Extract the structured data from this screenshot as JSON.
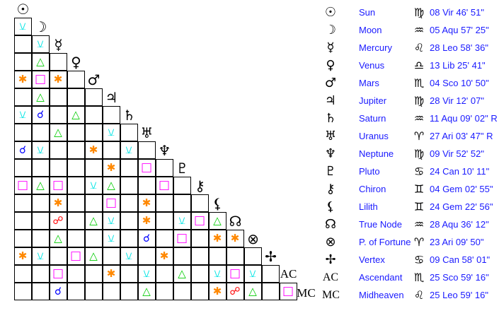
{
  "planets": [
    {
      "glyph": "☉",
      "name": "Sun",
      "sign": "♍",
      "position": "08 Vir 46' 51\""
    },
    {
      "glyph": "☽",
      "name": "Moon",
      "sign": "♒",
      "position": "05 Aqu 57' 25\""
    },
    {
      "glyph": "☿",
      "name": "Mercury",
      "sign": "♌",
      "position": "28 Leo 58' 36\""
    },
    {
      "glyph": "♀",
      "name": "Venus",
      "sign": "♎",
      "position": "13 Lib 25' 41\""
    },
    {
      "glyph": "♂",
      "name": "Mars",
      "sign": "♏",
      "position": "04 Sco 10' 50\""
    },
    {
      "glyph": "♃",
      "name": "Jupiter",
      "sign": "♍",
      "position": "28 Vir 12' 07\""
    },
    {
      "glyph": "♄",
      "name": "Saturn",
      "sign": "♒",
      "position": "11 Aqu 09' 02\" R"
    },
    {
      "glyph": "♅",
      "name": "Uranus",
      "sign": "♈",
      "position": "27 Ari 03' 47\" R"
    },
    {
      "glyph": "♆",
      "name": "Neptune",
      "sign": "♍",
      "position": "09 Vir 52' 52\""
    },
    {
      "glyph": "♇",
      "name": "Pluto",
      "sign": "♋",
      "position": "24 Can 10' 11\""
    },
    {
      "glyph": "⚷",
      "name": "Chiron",
      "sign": "♊",
      "position": "04 Gem 02' 55\""
    },
    {
      "glyph": "⚸",
      "name": "Lilith",
      "sign": "♊",
      "position": "24 Gem 22' 56\""
    },
    {
      "glyph": "☊",
      "name": "True Node",
      "sign": "♒",
      "position": "28 Aqu 36' 12\""
    },
    {
      "glyph": "⊗",
      "name": "P. of Fortune",
      "sign": "♈",
      "position": "23 Ari 09' 50\""
    },
    {
      "glyph": "✢",
      "name": "Vertex",
      "sign": "♋",
      "position": "09 Can 58' 01\""
    },
    {
      "glyph": "AC",
      "name": "Ascendant",
      "sign": "♏",
      "position": "25 Sco 59' 16\""
    },
    {
      "glyph": "MC",
      "name": "Midheaven",
      "sign": "♌",
      "position": "25 Leo 59' 16\""
    }
  ],
  "aspect_types": {
    "C": {
      "name": "conjunction",
      "glyph": "☌",
      "color": "#0000ff"
    },
    "O": {
      "name": "opposition",
      "glyph": "☍",
      "color": "#ff0000"
    },
    "T": {
      "name": "trine",
      "glyph": "△",
      "color": "#00cc00"
    },
    "S": {
      "name": "square",
      "glyph": "□",
      "color": "#ff00ff"
    },
    "X": {
      "name": "sextile",
      "glyph": "✱",
      "color": "#ff8800"
    },
    "H": {
      "name": "semisextile",
      "glyph": "⚺",
      "color": "#00e5e5"
    }
  },
  "aspect_grid": [
    [
      "H"
    ],
    [
      "",
      "H"
    ],
    [
      "",
      "T",
      ""
    ],
    [
      "X",
      "S",
      "X",
      ""
    ],
    [
      "",
      "T",
      "",
      "",
      ""
    ],
    [
      "H",
      "C",
      "",
      "T",
      "",
      ""
    ],
    [
      "",
      "",
      "T",
      "",
      "",
      "H",
      ""
    ],
    [
      "C",
      "H",
      "",
      "",
      "X",
      "",
      "H",
      ""
    ],
    [
      "",
      "",
      "",
      "",
      "",
      "X",
      "",
      "S",
      ""
    ],
    [
      "S",
      "T",
      "S",
      "",
      "H",
      "T",
      "",
      "",
      "S",
      ""
    ],
    [
      "",
      "",
      "X",
      "",
      "",
      "S",
      "",
      "X",
      "",
      "",
      ""
    ],
    [
      "",
      "",
      "O",
      "",
      "T",
      "H",
      "",
      "X",
      "",
      "H",
      "S",
      "T"
    ],
    [
      "",
      "",
      "T",
      "",
      "",
      "H",
      "",
      "C",
      "",
      "S",
      "",
      "X",
      "X"
    ],
    [
      "X",
      "H",
      "",
      "S",
      "T",
      "",
      "H",
      "",
      "X",
      "",
      "",
      "",
      "",
      ""
    ],
    [
      "",
      "",
      "S",
      "",
      "",
      "X",
      "",
      "H",
      "",
      "T",
      "",
      "H",
      "S",
      "H",
      ""
    ],
    [
      "",
      "",
      "C",
      "",
      "",
      "",
      "",
      "T",
      "",
      "",
      "",
      "X",
      "O",
      "T",
      "",
      "S"
    ]
  ]
}
